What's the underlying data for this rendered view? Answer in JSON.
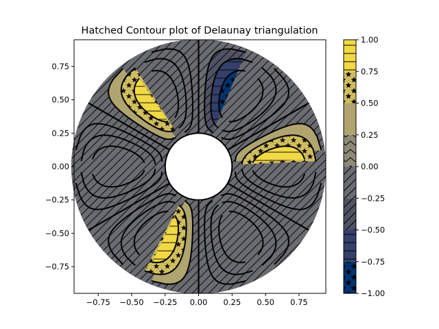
{
  "chart_data": [
    {
      "type": "tricontourf",
      "title": "Hatched Contour plot of Delaunay triangulation",
      "xlabel": "",
      "ylabel": "",
      "xlim": [
        -0.93,
        0.95
      ],
      "ylim": [
        -0.95,
        0.95
      ],
      "xticks": [
        "−0.75",
        "−0.50",
        "−0.25",
        "0.00",
        "0.25",
        "0.50",
        "0.75"
      ],
      "yticks": [
        "−0.75",
        "−0.50",
        "−0.25",
        "0.00",
        "0.25",
        "0.50",
        "0.75"
      ],
      "inner_radius": 0.25,
      "outer_radius": 0.95,
      "grid": false,
      "colormap": "cividis",
      "colorbar_levels": [
        -1.0,
        -0.75,
        -0.5,
        -0.25,
        0.0,
        0.25,
        0.5,
        0.75,
        1.0
      ],
      "colorbar_ticks": [
        "1.00",
        "0.75",
        "0.50",
        "0.25",
        "0.00",
        "−0.25",
        "−0.50",
        "−0.75",
        "−1.00"
      ],
      "bands": [
        {
          "range": [
            -1.0,
            -0.75
          ],
          "color": "#00336f",
          "hatch": "stars"
        },
        {
          "range": [
            -0.75,
            -0.5
          ],
          "color": "#34406b",
          "hatch": "horizontal"
        },
        {
          "range": [
            -0.5,
            -0.25
          ],
          "color": "#505364",
          "hatch": "diagonal"
        },
        {
          "range": [
            -0.25,
            0.0
          ],
          "color": "#6b6c71",
          "hatch": "diagonal"
        },
        {
          "range": [
            0.0,
            0.25
          ],
          "color": "#8f8978",
          "hatch": "chevron"
        },
        {
          "range": [
            0.25,
            0.5
          ],
          "color": "#b0a46f",
          "hatch": "none"
        },
        {
          "range": [
            0.5,
            0.75
          ],
          "color": "#d0bd5f",
          "hatch": "stars"
        },
        {
          "range": [
            0.75,
            1.0
          ],
          "color": "#f1d845",
          "hatch": "horizontal"
        }
      ],
      "lobes": [
        {
          "angle_deg": 0,
          "sign": "positive"
        },
        {
          "angle_deg": 60,
          "sign": "negative"
        },
        {
          "angle_deg": 120,
          "sign": "positive"
        },
        {
          "angle_deg": 180,
          "sign": "negative"
        },
        {
          "angle_deg": 240,
          "sign": "positive"
        },
        {
          "angle_deg": 300,
          "sign": "negative"
        }
      ]
    }
  ]
}
